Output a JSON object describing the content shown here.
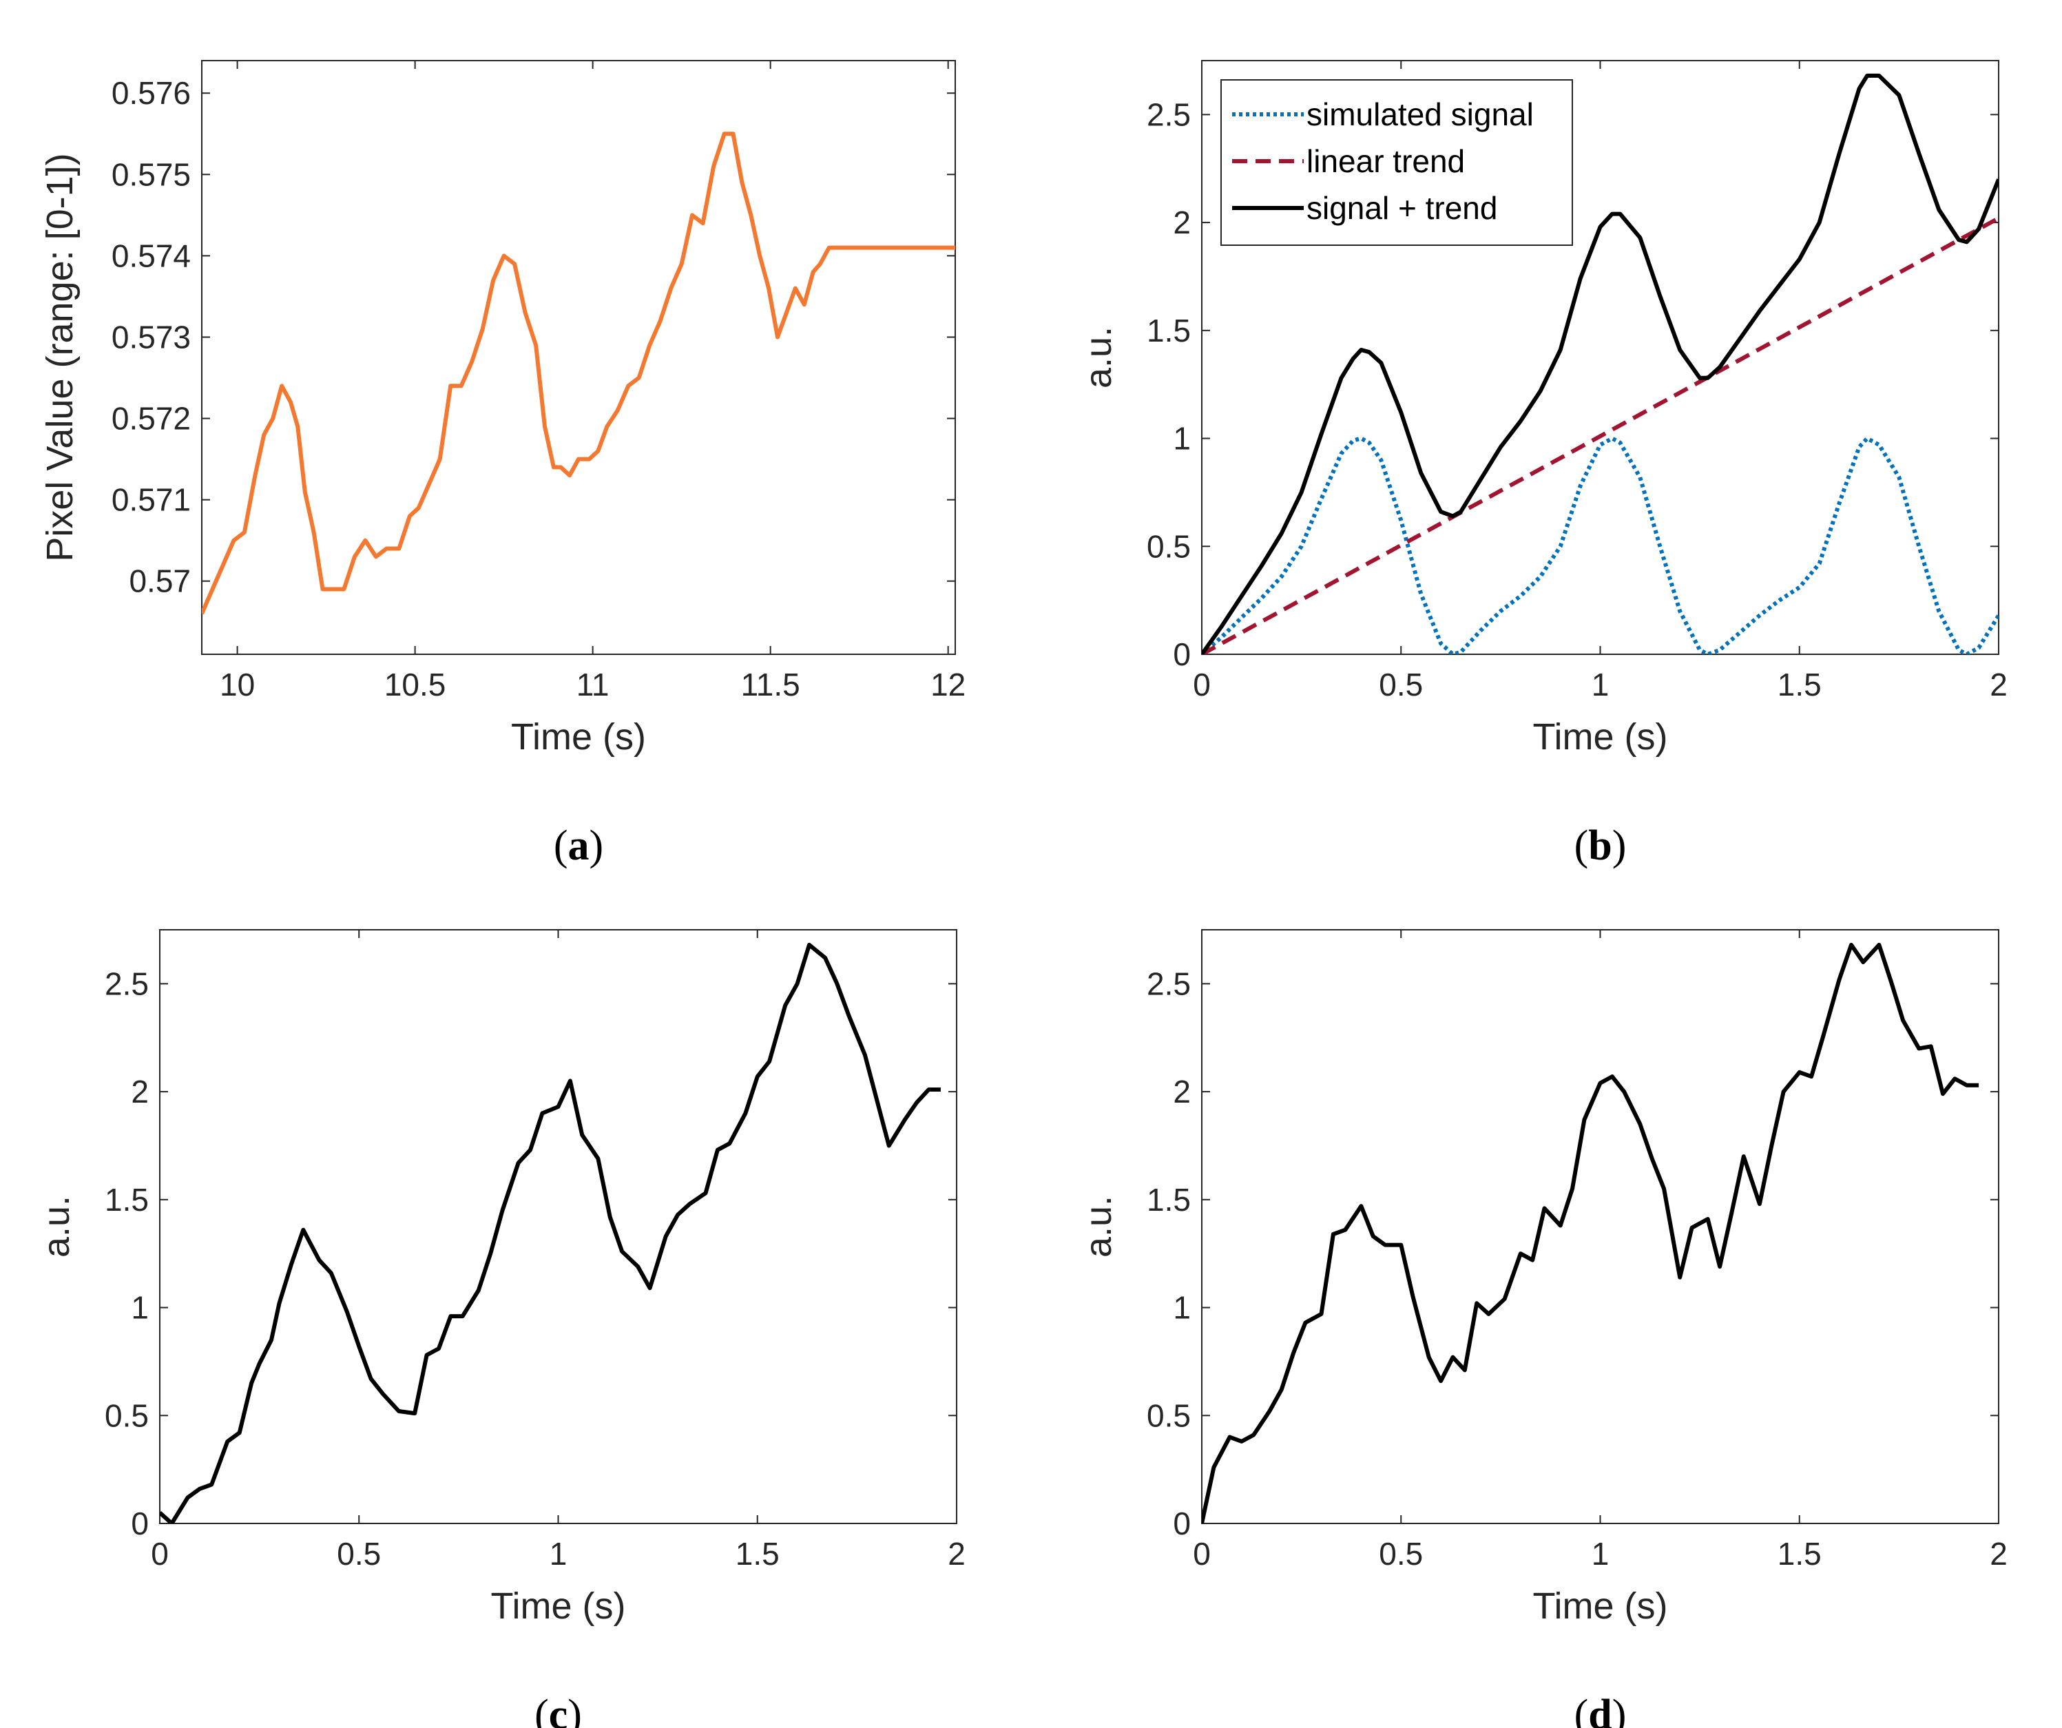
{
  "chart_data": [
    {
      "id": "a",
      "type": "line",
      "caption_open": "(",
      "caption_letter": "a",
      "caption_close": ")",
      "xlabel": "Time (s)",
      "ylabel": "Pixel Value (range: [0-1])",
      "xlim": [
        9.9,
        12.02
      ],
      "ylim": [
        0.5691,
        0.5764
      ],
      "xticks": [
        10,
        10.5,
        11,
        11.5,
        12
      ],
      "xticklabels": [
        "10",
        "10.5",
        "11",
        "11.5",
        "12"
      ],
      "yticks": [
        0.57,
        0.571,
        0.572,
        0.573,
        0.574,
        0.575,
        0.576
      ],
      "yticklabels": [
        "0.57",
        "0.571",
        "0.572",
        "0.573",
        "0.574",
        "0.575",
        "0.576"
      ],
      "series": [
        {
          "color": "#F4782F",
          "style": "solid",
          "x": [
            9.9,
            9.93,
            9.96,
            9.99,
            10.02,
            10.05,
            10.075,
            10.1,
            10.125,
            10.15,
            10.17,
            10.19,
            10.215,
            10.24,
            10.27,
            10.3,
            10.33,
            10.36,
            10.39,
            10.42,
            10.455,
            10.485,
            10.51,
            10.54,
            10.57,
            10.6,
            10.63,
            10.66,
            10.69,
            10.72,
            10.75,
            10.78,
            10.81,
            10.84,
            10.865,
            10.89,
            10.91,
            10.935,
            10.96,
            10.99,
            11.015,
            11.04,
            11.07,
            11.1,
            11.13,
            11.16,
            11.19,
            11.22,
            11.25,
            11.28,
            11.31,
            11.34,
            11.37,
            11.395,
            11.42,
            11.445,
            11.47,
            11.495,
            11.52,
            11.545,
            11.57,
            11.595,
            11.62,
            11.64,
            11.665,
            11.69,
            11.72,
            11.745,
            11.77,
            11.795,
            11.82,
            11.845,
            11.875,
            11.9,
            11.92,
            11.945,
            11.975,
            12.0,
            12.02
          ],
          "y": [
            0.5696,
            0.5699,
            0.5702,
            0.5705,
            0.5706,
            0.5713,
            0.5718,
            0.572,
            0.5724,
            0.5722,
            0.5719,
            0.5711,
            0.5706,
            0.5699,
            0.5699,
            0.5699,
            0.5703,
            0.5705,
            0.5703,
            0.5704,
            0.5704,
            0.5708,
            0.5709,
            0.5712,
            0.5715,
            0.5724,
            0.5724,
            0.5727,
            0.5731,
            0.5737,
            0.574,
            0.5739,
            0.5733,
            0.5729,
            0.5719,
            0.5714,
            0.5714,
            0.5713,
            0.5715,
            0.5715,
            0.5716,
            0.5719,
            0.5721,
            0.5724,
            0.5725,
            0.5729,
            0.5732,
            0.5736,
            0.5739,
            0.5745,
            0.5744,
            0.5751,
            0.5755,
            0.5755,
            0.5749,
            0.5745,
            0.574,
            0.5736,
            0.573,
            0.5733,
            0.5736,
            0.5734,
            0.5738,
            0.5739,
            0.5741,
            0.5741,
            0.5741,
            0.5741,
            0.5741,
            0.5741,
            0.5741,
            0.5741,
            0.5741,
            0.5741,
            0.5741,
            0.5741,
            0.5741,
            0.5741,
            0.5741
          ]
        }
      ]
    },
    {
      "id": "b",
      "type": "line",
      "caption_open": "(",
      "caption_letter": "b",
      "caption_close": ")",
      "xlabel": "Time (s)",
      "ylabel": "a.u.",
      "xlim": [
        0,
        2
      ],
      "ylim": [
        0,
        2.75
      ],
      "xticks": [
        0,
        0.5,
        1,
        1.5,
        2
      ],
      "xticklabels": [
        "0",
        "0.5",
        "1",
        "1.5",
        "2"
      ],
      "yticks": [
        0,
        0.5,
        1,
        1.5,
        2,
        2.5
      ],
      "yticklabels": [
        "0",
        "0.5",
        "1",
        "1.5",
        "2",
        "2.5"
      ],
      "legend_position": "top-left",
      "series": [
        {
          "name": "simulated signal",
          "color": "#0072BD",
          "style": "dotted",
          "x": [
            0,
            0.05,
            0.1,
            0.15,
            0.2,
            0.25,
            0.3,
            0.35,
            0.38,
            0.4,
            0.42,
            0.45,
            0.5,
            0.55,
            0.6,
            0.63,
            0.65,
            0.7,
            0.75,
            0.8,
            0.85,
            0.9,
            0.95,
            1.0,
            1.03,
            1.05,
            1.1,
            1.15,
            1.2,
            1.25,
            1.27,
            1.3,
            1.35,
            1.4,
            1.45,
            1.5,
            1.55,
            1.6,
            1.65,
            1.67,
            1.7,
            1.75,
            1.8,
            1.85,
            1.9,
            1.92,
            1.95,
            2.0
          ],
          "y": [
            0,
            0.08,
            0.17,
            0.26,
            0.36,
            0.5,
            0.72,
            0.93,
            0.99,
            1.0,
            0.98,
            0.9,
            0.62,
            0.28,
            0.05,
            0.0,
            0.01,
            0.11,
            0.2,
            0.27,
            0.36,
            0.5,
            0.78,
            0.97,
            1.0,
            0.98,
            0.82,
            0.5,
            0.2,
            0.02,
            0.0,
            0.02,
            0.1,
            0.18,
            0.25,
            0.31,
            0.42,
            0.7,
            0.96,
            1.0,
            0.97,
            0.82,
            0.5,
            0.2,
            0.02,
            0.0,
            0.03,
            0.18
          ]
        },
        {
          "name": "linear trend",
          "color": "#A2142F",
          "style": "dashed",
          "x": [
            0,
            2
          ],
          "y": [
            0,
            2.02
          ]
        },
        {
          "name": "signal + trend",
          "color": "#000000",
          "style": "solid",
          "x": [
            0,
            0.05,
            0.1,
            0.15,
            0.2,
            0.25,
            0.3,
            0.35,
            0.38,
            0.4,
            0.42,
            0.45,
            0.5,
            0.55,
            0.6,
            0.63,
            0.65,
            0.7,
            0.75,
            0.8,
            0.85,
            0.9,
            0.95,
            1.0,
            1.03,
            1.05,
            1.1,
            1.15,
            1.2,
            1.25,
            1.27,
            1.3,
            1.35,
            1.4,
            1.45,
            1.5,
            1.55,
            1.6,
            1.65,
            1.67,
            1.7,
            1.75,
            1.8,
            1.85,
            1.9,
            1.92,
            1.95,
            2.0
          ],
          "y": [
            0,
            0.13,
            0.27,
            0.41,
            0.56,
            0.75,
            1.02,
            1.28,
            1.37,
            1.41,
            1.4,
            1.35,
            1.12,
            0.84,
            0.66,
            0.64,
            0.66,
            0.81,
            0.96,
            1.08,
            1.22,
            1.41,
            1.74,
            1.98,
            2.04,
            2.04,
            1.93,
            1.66,
            1.41,
            1.28,
            1.28,
            1.33,
            1.46,
            1.59,
            1.71,
            1.83,
            2.0,
            2.32,
            2.62,
            2.68,
            2.68,
            2.59,
            2.32,
            2.06,
            1.92,
            1.91,
            1.97,
            2.2
          ]
        }
      ]
    },
    {
      "id": "c",
      "type": "line",
      "caption_open": "(",
      "caption_letter": "c",
      "caption_close": ")",
      "xlabel": "Time (s)",
      "ylabel": "a.u.",
      "xlim": [
        0,
        2
      ],
      "ylim": [
        0,
        2.75
      ],
      "xticks": [
        0,
        0.5,
        1,
        1.5,
        2
      ],
      "xticklabels": [
        "0",
        "0.5",
        "1",
        "1.5",
        "2"
      ],
      "yticks": [
        0,
        0.5,
        1,
        1.5,
        2,
        2.5
      ],
      "yticklabels": [
        "0",
        "0.5",
        "1",
        "1.5",
        "2",
        "2.5"
      ],
      "series": [
        {
          "color": "#000000",
          "style": "solid",
          "x": [
            0,
            0.03,
            0.07,
            0.1,
            0.13,
            0.17,
            0.2,
            0.23,
            0.25,
            0.28,
            0.3,
            0.33,
            0.36,
            0.4,
            0.43,
            0.47,
            0.5,
            0.53,
            0.56,
            0.6,
            0.64,
            0.67,
            0.7,
            0.73,
            0.76,
            0.8,
            0.83,
            0.86,
            0.9,
            0.93,
            0.96,
            1.0,
            1.03,
            1.06,
            1.1,
            1.13,
            1.16,
            1.2,
            1.23,
            1.27,
            1.3,
            1.33,
            1.37,
            1.4,
            1.43,
            1.47,
            1.5,
            1.53,
            1.57,
            1.6,
            1.63,
            1.67,
            1.7,
            1.73,
            1.77,
            1.8,
            1.83,
            1.87,
            1.9,
            1.93,
            1.96
          ],
          "y": [
            0.05,
            0.0,
            0.12,
            0.16,
            0.18,
            0.38,
            0.42,
            0.65,
            0.74,
            0.85,
            1.02,
            1.2,
            1.36,
            1.22,
            1.16,
            0.98,
            0.82,
            0.67,
            0.6,
            0.52,
            0.51,
            0.78,
            0.81,
            0.96,
            0.96,
            1.08,
            1.25,
            1.45,
            1.67,
            1.73,
            1.9,
            1.93,
            2.05,
            1.8,
            1.69,
            1.42,
            1.26,
            1.19,
            1.09,
            1.33,
            1.43,
            1.48,
            1.53,
            1.73,
            1.76,
            1.9,
            2.07,
            2.14,
            2.4,
            2.5,
            2.68,
            2.62,
            2.5,
            2.35,
            2.17,
            1.96,
            1.75,
            1.87,
            1.95,
            2.01,
            2.01
          ]
        }
      ]
    },
    {
      "id": "d",
      "type": "line",
      "caption_open": "(",
      "caption_letter": "d",
      "caption_close": ")",
      "xlabel": "Time (s)",
      "ylabel": "a.u.",
      "xlim": [
        0,
        2
      ],
      "ylim": [
        0,
        2.75
      ],
      "xticks": [
        0,
        0.5,
        1,
        1.5,
        2
      ],
      "xticklabels": [
        "0",
        "0.5",
        "1",
        "1.5",
        "2"
      ],
      "yticks": [
        0,
        0.5,
        1,
        1.5,
        2,
        2.5
      ],
      "yticklabels": [
        "0",
        "0.5",
        "1",
        "1.5",
        "2",
        "2.5"
      ],
      "series": [
        {
          "color": "#000000",
          "style": "solid",
          "x": [
            0,
            0.03,
            0.07,
            0.1,
            0.13,
            0.17,
            0.2,
            0.23,
            0.26,
            0.3,
            0.33,
            0.36,
            0.4,
            0.43,
            0.46,
            0.5,
            0.53,
            0.57,
            0.6,
            0.63,
            0.66,
            0.69,
            0.72,
            0.76,
            0.8,
            0.83,
            0.86,
            0.9,
            0.93,
            0.96,
            1.0,
            1.03,
            1.06,
            1.1,
            1.13,
            1.16,
            1.2,
            1.23,
            1.27,
            1.3,
            1.33,
            1.36,
            1.4,
            1.43,
            1.46,
            1.5,
            1.53,
            1.56,
            1.6,
            1.63,
            1.66,
            1.7,
            1.73,
            1.76,
            1.8,
            1.83,
            1.86,
            1.89,
            1.92,
            1.95
          ],
          "y": [
            0,
            0.26,
            0.4,
            0.38,
            0.41,
            0.52,
            0.62,
            0.79,
            0.93,
            0.97,
            1.34,
            1.36,
            1.47,
            1.33,
            1.29,
            1.29,
            1.05,
            0.77,
            0.66,
            0.77,
            0.71,
            1.02,
            0.97,
            1.04,
            1.25,
            1.22,
            1.46,
            1.38,
            1.55,
            1.87,
            2.04,
            2.07,
            2.0,
            1.85,
            1.69,
            1.55,
            1.14,
            1.37,
            1.41,
            1.19,
            1.44,
            1.7,
            1.48,
            1.75,
            2.0,
            2.09,
            2.07,
            2.26,
            2.52,
            2.68,
            2.6,
            2.68,
            2.51,
            2.33,
            2.2,
            2.21,
            1.99,
            2.06,
            2.03,
            2.03
          ]
        }
      ]
    }
  ]
}
